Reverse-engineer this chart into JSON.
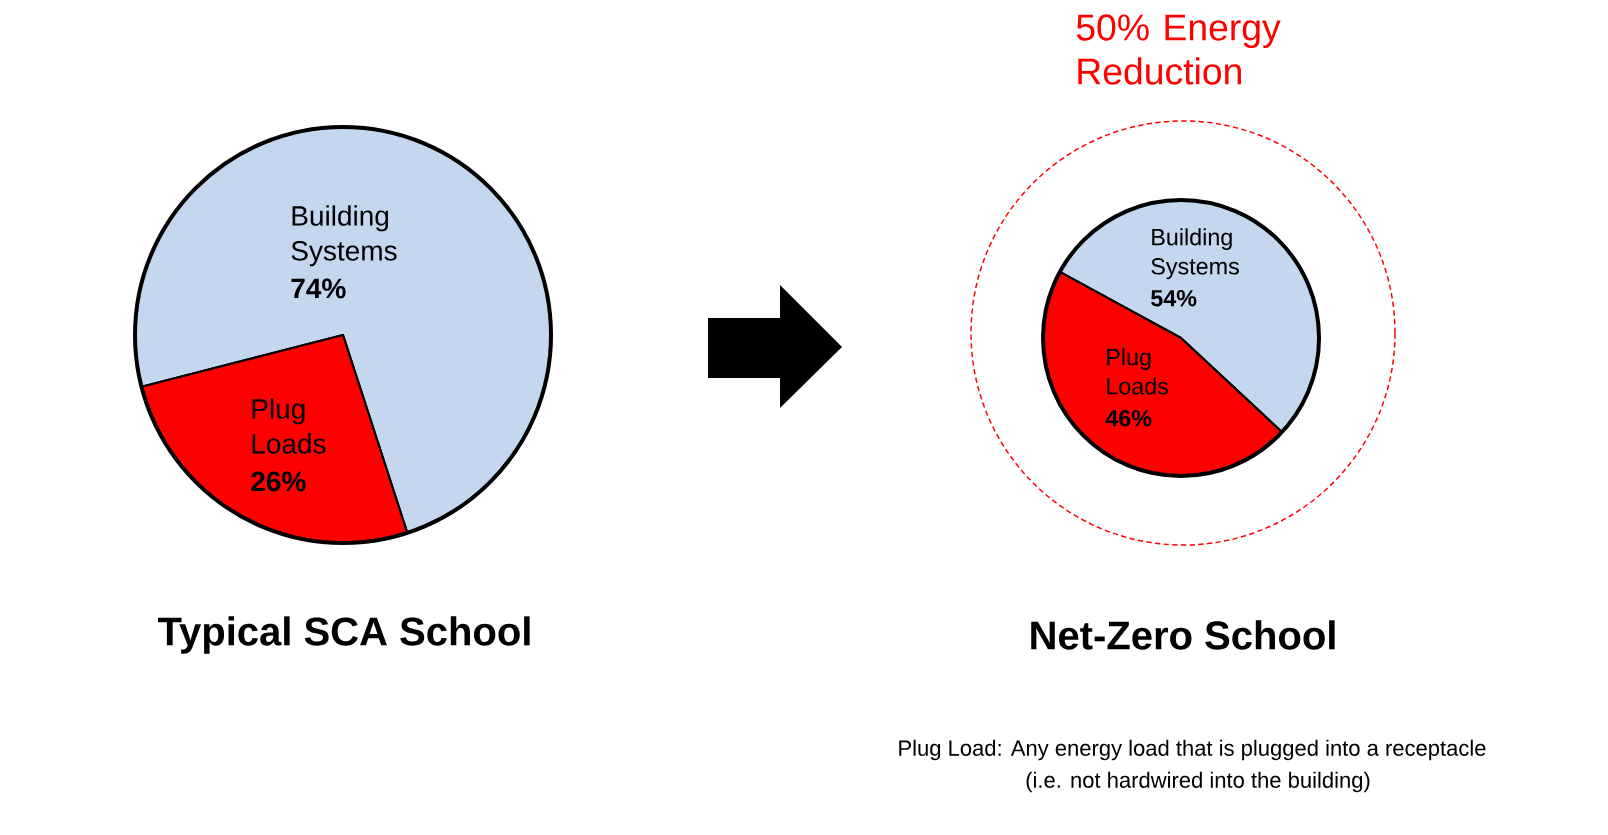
{
  "chart_data": [
    {
      "type": "pie",
      "title": "Typical SCA School",
      "categories": [
        "Building Systems",
        "Plug Loads"
      ],
      "values": [
        74,
        26
      ],
      "colors": [
        "#c5d7ee",
        "#ff0000"
      ],
      "value_labels": [
        "74%",
        "26%"
      ]
    },
    {
      "type": "pie",
      "title": "Net-Zero School",
      "categories": [
        "Building Systems",
        "Plug Loads"
      ],
      "values": [
        54,
        46
      ],
      "colors": [
        "#c5d7ee",
        "#ff0000"
      ],
      "value_labels": [
        "54%",
        "46%"
      ],
      "annotations": [
        "50% Energy Reduction",
        "Plug Load: Any energy load that is plugged into a receptacle",
        "(i.e. not hardwired into the building)"
      ]
    }
  ]
}
